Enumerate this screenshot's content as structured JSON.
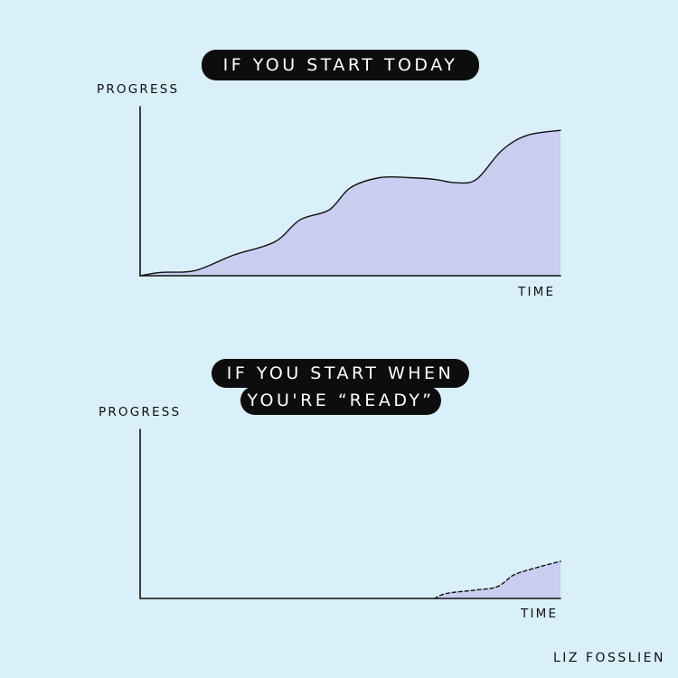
{
  "chart_data": [
    {
      "type": "area",
      "title": "IF YOU START TODAY",
      "xlabel": "TIME",
      "ylabel": "PROGRESS",
      "xlim": [
        0,
        100
      ],
      "ylim": [
        0,
        100
      ],
      "fill_color": "#c9cdf0",
      "line_style": "solid",
      "series": [
        {
          "x": [
            0,
            5,
            13,
            22,
            32,
            38,
            45,
            50,
            57,
            64,
            70,
            75,
            80,
            86,
            92,
            100
          ],
          "y": [
            0,
            2,
            3,
            12,
            20,
            33,
            39,
            52,
            58,
            58,
            57,
            55,
            57,
            74,
            83,
            86
          ]
        }
      ]
    },
    {
      "type": "area",
      "title": "IF YOU START WHEN YOU'RE “READY”",
      "title_lines": [
        "IF YOU START WHEN",
        "YOU'RE “READY”"
      ],
      "xlabel": "TIME",
      "ylabel": "PROGRESS",
      "xlim": [
        0,
        100
      ],
      "ylim": [
        0,
        100
      ],
      "fill_color": "#c9cdf0",
      "line_style": "dashed",
      "series": [
        {
          "x": [
            70,
            73,
            80,
            85,
            89,
            94,
            100
          ],
          "y": [
            0,
            3,
            5,
            7,
            14,
            18,
            22
          ]
        }
      ]
    }
  ],
  "credit": "LIZ FOSSLIEN",
  "colors": {
    "background": "#d9eff9",
    "pill": "#0d0d0d",
    "pill_text": "#ffffff",
    "ink": "#111111"
  }
}
